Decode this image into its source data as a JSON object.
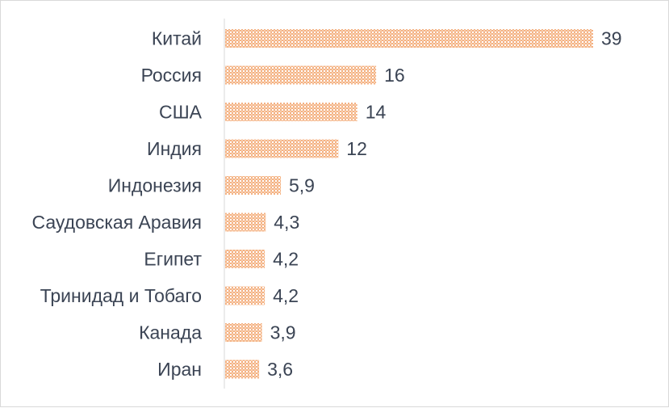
{
  "chart_data": {
    "type": "bar",
    "orientation": "horizontal",
    "categories": [
      "Китай",
      "Россия",
      "США",
      "Индия",
      "Индонезия",
      "Саудовская Аравия",
      "Египет",
      "Тринидад и Тобаго",
      "Канада",
      "Иран"
    ],
    "values": [
      39,
      16,
      14,
      12,
      5.9,
      4.3,
      4.2,
      4.2,
      3.9,
      3.6
    ],
    "value_labels": [
      "39",
      "16",
      "14",
      "12",
      "5,9",
      "4,3",
      "4,2",
      "4,2",
      "3,9",
      "3,6"
    ],
    "title": "",
    "xlabel": "",
    "ylabel": "",
    "xlim": [
      0,
      39
    ],
    "grid": false,
    "legend": "none",
    "bar_color": "#f4b183",
    "bar_pattern": "crosshatch",
    "text_color": "#3b4454",
    "axis_color": "#d9d9d9"
  }
}
